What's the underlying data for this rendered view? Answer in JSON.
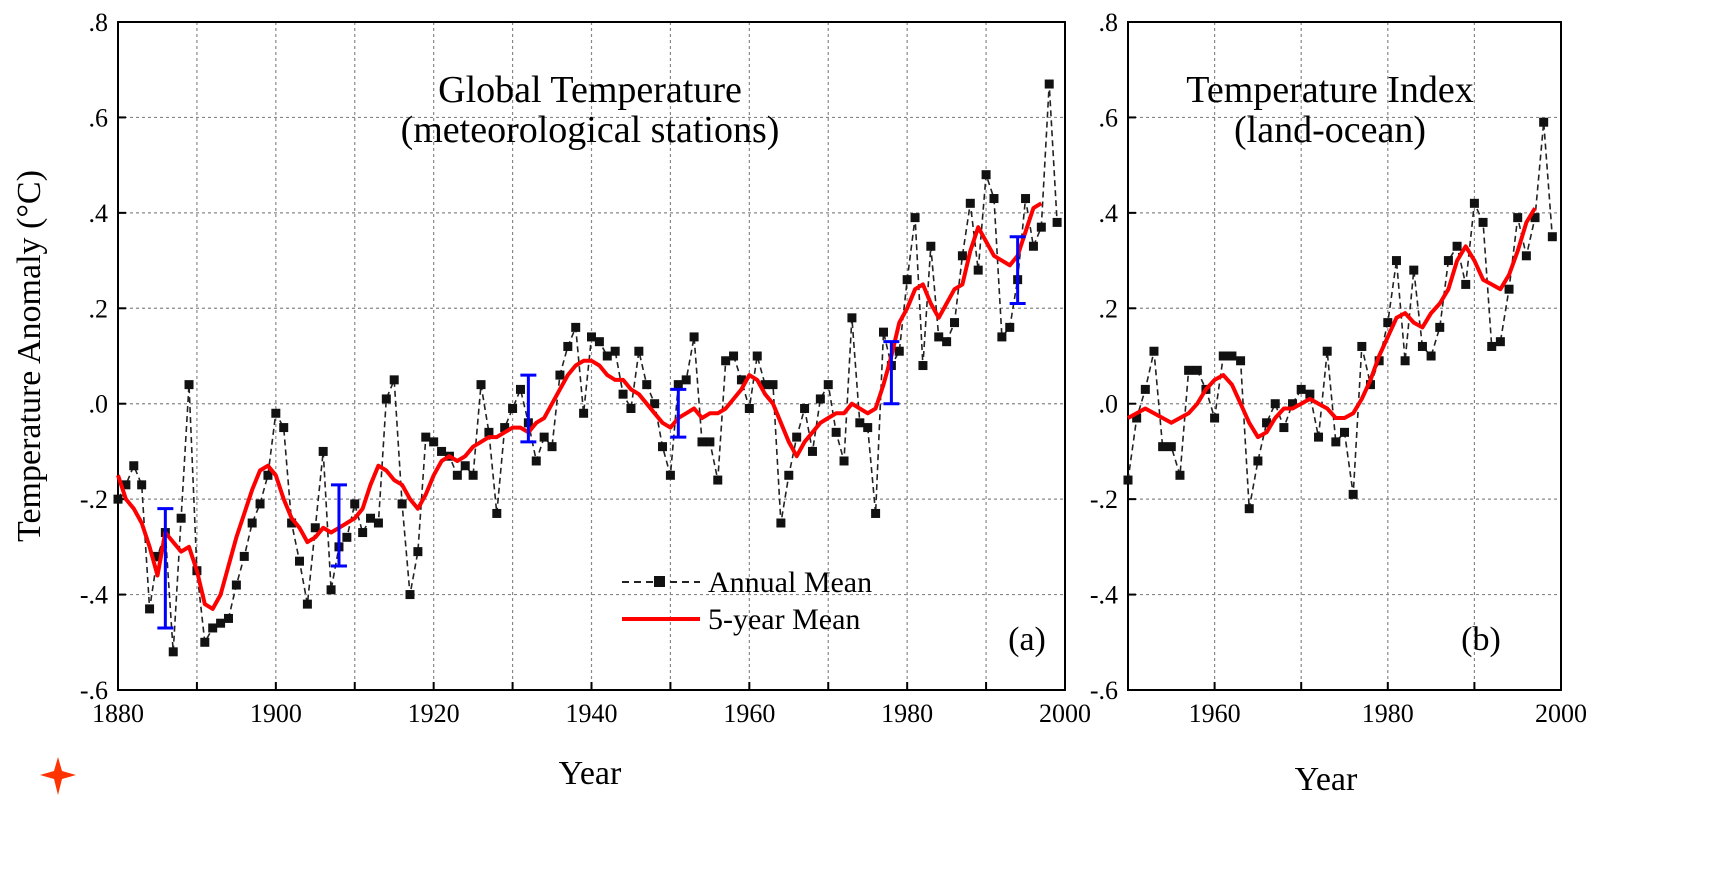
{
  "chart_data": [
    {
      "type": "line",
      "panel": "(a)",
      "title": "Global Temperature",
      "subtitle": "(meteorological stations)",
      "xlabel": "Year",
      "ylabel": "Temperature Anomaly (°C)",
      "xlim": [
        1880,
        2000
      ],
      "ylim": [
        -0.6,
        0.8
      ],
      "x_ticks": [
        "1880",
        "1900",
        "1920",
        "1940",
        "1960",
        "1980",
        "2000"
      ],
      "y_ticks": [
        ".8",
        ".6",
        ".4",
        ".2",
        ".0",
        "-.2",
        "-.4",
        "-.6"
      ],
      "grid": true,
      "legend_position": "bottom-center",
      "series": [
        {
          "name": "Annual Mean",
          "style": "dashed-markers",
          "color": "#222222",
          "x": [
            1880,
            1881,
            1882,
            1883,
            1884,
            1885,
            1886,
            1887,
            1888,
            1889,
            1890,
            1891,
            1892,
            1893,
            1894,
            1895,
            1896,
            1897,
            1898,
            1899,
            1900,
            1901,
            1902,
            1903,
            1904,
            1905,
            1906,
            1907,
            1908,
            1909,
            1910,
            1911,
            1912,
            1913,
            1914,
            1915,
            1916,
            1917,
            1918,
            1919,
            1920,
            1921,
            1922,
            1923,
            1924,
            1925,
            1926,
            1927,
            1928,
            1929,
            1930,
            1931,
            1932,
            1933,
            1934,
            1935,
            1936,
            1937,
            1938,
            1939,
            1940,
            1941,
            1942,
            1943,
            1944,
            1945,
            1946,
            1947,
            1948,
            1949,
            1950,
            1951,
            1952,
            1953,
            1954,
            1955,
            1956,
            1957,
            1958,
            1959,
            1960,
            1961,
            1962,
            1963,
            1964,
            1965,
            1966,
            1967,
            1968,
            1969,
            1970,
            1971,
            1972,
            1973,
            1974,
            1975,
            1976,
            1977,
            1978,
            1979,
            1980,
            1981,
            1982,
            1983,
            1984,
            1985,
            1986,
            1987,
            1988,
            1989,
            1990,
            1991,
            1992,
            1993,
            1994,
            1995,
            1996,
            1997,
            1998,
            1999
          ],
          "y": [
            -0.2,
            -0.17,
            -0.13,
            -0.17,
            -0.43,
            -0.32,
            -0.27,
            -0.52,
            -0.24,
            0.04,
            -0.35,
            -0.5,
            -0.47,
            -0.46,
            -0.45,
            -0.38,
            -0.32,
            -0.25,
            -0.21,
            -0.15,
            -0.02,
            -0.05,
            -0.25,
            -0.33,
            -0.42,
            -0.26,
            -0.1,
            -0.39,
            -0.3,
            -0.28,
            -0.21,
            -0.27,
            -0.24,
            -0.25,
            0.01,
            0.05,
            -0.21,
            -0.4,
            -0.31,
            -0.07,
            -0.08,
            -0.1,
            -0.11,
            -0.15,
            -0.13,
            -0.15,
            0.04,
            -0.06,
            -0.23,
            -0.05,
            -0.01,
            0.03,
            -0.04,
            -0.12,
            -0.07,
            -0.09,
            0.06,
            0.12,
            0.16,
            -0.02,
            0.14,
            0.13,
            0.1,
            0.11,
            0.02,
            -0.01,
            0.11,
            0.04,
            0.0,
            -0.09,
            -0.15,
            0.04,
            0.05,
            0.14,
            -0.08,
            -0.08,
            -0.16,
            0.09,
            0.1,
            0.05,
            -0.01,
            0.1,
            0.04,
            0.04,
            -0.25,
            -0.15,
            -0.07,
            -0.01,
            -0.1,
            0.01,
            0.04,
            -0.06,
            -0.12,
            0.18,
            -0.04,
            -0.05,
            -0.23,
            0.15,
            0.08,
            0.11,
            0.26,
            0.39,
            0.08,
            0.33,
            0.14,
            0.13,
            0.17,
            0.31,
            0.42,
            0.28,
            0.48,
            0.43,
            0.14,
            0.16,
            0.26,
            0.43,
            0.33,
            0.37,
            0.67,
            0.38
          ]
        },
        {
          "name": "5-year Mean",
          "style": "solid",
          "color": "#ff0000",
          "x": [
            1880,
            1881,
            1882,
            1883,
            1884,
            1885,
            1886,
            1887,
            1888,
            1889,
            1890,
            1891,
            1892,
            1893,
            1894,
            1895,
            1896,
            1897,
            1898,
            1899,
            1900,
            1901,
            1902,
            1903,
            1904,
            1905,
            1906,
            1907,
            1908,
            1909,
            1910,
            1911,
            1912,
            1913,
            1914,
            1915,
            1916,
            1917,
            1918,
            1919,
            1920,
            1921,
            1922,
            1923,
            1924,
            1925,
            1926,
            1927,
            1928,
            1929,
            1930,
            1931,
            1932,
            1933,
            1934,
            1935,
            1936,
            1937,
            1938,
            1939,
            1940,
            1941,
            1942,
            1943,
            1944,
            1945,
            1946,
            1947,
            1948,
            1949,
            1950,
            1951,
            1952,
            1953,
            1954,
            1955,
            1956,
            1957,
            1958,
            1959,
            1960,
            1961,
            1962,
            1963,
            1964,
            1965,
            1966,
            1967,
            1968,
            1969,
            1970,
            1971,
            1972,
            1973,
            1974,
            1975,
            1976,
            1977,
            1978,
            1979,
            1980,
            1981,
            1982,
            1983,
            1984,
            1985,
            1986,
            1987,
            1988,
            1989,
            1990,
            1991,
            1992,
            1993,
            1994,
            1995,
            1996,
            1997
          ],
          "y": [
            -0.15,
            -0.2,
            -0.22,
            -0.25,
            -0.3,
            -0.36,
            -0.27,
            -0.29,
            -0.31,
            -0.3,
            -0.35,
            -0.42,
            -0.43,
            -0.4,
            -0.34,
            -0.28,
            -0.23,
            -0.18,
            -0.14,
            -0.13,
            -0.15,
            -0.2,
            -0.24,
            -0.26,
            -0.29,
            -0.28,
            -0.26,
            -0.27,
            -0.26,
            -0.25,
            -0.24,
            -0.22,
            -0.17,
            -0.13,
            -0.14,
            -0.16,
            -0.17,
            -0.2,
            -0.22,
            -0.19,
            -0.15,
            -0.12,
            -0.11,
            -0.12,
            -0.11,
            -0.09,
            -0.08,
            -0.07,
            -0.07,
            -0.06,
            -0.05,
            -0.05,
            -0.06,
            -0.04,
            -0.03,
            0.0,
            0.03,
            0.06,
            0.08,
            0.09,
            0.09,
            0.08,
            0.06,
            0.05,
            0.05,
            0.03,
            0.02,
            0.0,
            -0.02,
            -0.04,
            -0.05,
            -0.03,
            -0.02,
            -0.01,
            -0.03,
            -0.02,
            -0.02,
            -0.01,
            0.01,
            0.03,
            0.06,
            0.05,
            0.02,
            0.0,
            -0.04,
            -0.08,
            -0.11,
            -0.08,
            -0.06,
            -0.04,
            -0.03,
            -0.02,
            -0.02,
            0.0,
            -0.01,
            -0.02,
            -0.01,
            0.04,
            0.1,
            0.17,
            0.2,
            0.24,
            0.25,
            0.21,
            0.18,
            0.21,
            0.24,
            0.25,
            0.32,
            0.37,
            0.34,
            0.31,
            0.3,
            0.29,
            0.31,
            0.36,
            0.41,
            0.42
          ]
        }
      ],
      "error_bars": [
        {
          "x": 1886,
          "low": -0.47,
          "high": -0.22
        },
        {
          "x": 1908,
          "low": -0.34,
          "high": -0.17
        },
        {
          "x": 1932,
          "low": -0.08,
          "high": 0.06
        },
        {
          "x": 1951,
          "low": -0.07,
          "high": 0.03
        },
        {
          "x": 1978,
          "low": 0.0,
          "high": 0.13
        },
        {
          "x": 1994,
          "low": 0.21,
          "high": 0.35
        }
      ],
      "error_bar_color": "#0000ff"
    },
    {
      "type": "line",
      "panel": "(b)",
      "title": "Temperature Index",
      "subtitle": "(land-ocean)",
      "xlabel": "Year",
      "ylabel": "",
      "xlim": [
        1950,
        2000
      ],
      "ylim": [
        -0.6,
        0.8
      ],
      "x_ticks": [
        "1960",
        "1980",
        "2000"
      ],
      "y_ticks": [
        ".8",
        ".6",
        ".4",
        ".2",
        ".0",
        "-.2",
        "-.4",
        "-.6"
      ],
      "grid": true,
      "series": [
        {
          "name": "Annual Mean",
          "style": "dashed-markers",
          "color": "#222222",
          "x": [
            1950,
            1951,
            1952,
            1953,
            1954,
            1955,
            1956,
            1957,
            1958,
            1959,
            1960,
            1961,
            1962,
            1963,
            1964,
            1965,
            1966,
            1967,
            1968,
            1969,
            1970,
            1971,
            1972,
            1973,
            1974,
            1975,
            1976,
            1977,
            1978,
            1979,
            1980,
            1981,
            1982,
            1983,
            1984,
            1985,
            1986,
            1987,
            1988,
            1989,
            1990,
            1991,
            1992,
            1993,
            1994,
            1995,
            1996,
            1997,
            1998,
            1999
          ],
          "y": [
            -0.16,
            -0.03,
            0.03,
            0.11,
            -0.09,
            -0.09,
            -0.15,
            0.07,
            0.07,
            0.03,
            -0.03,
            0.1,
            0.1,
            0.09,
            -0.22,
            -0.12,
            -0.04,
            0.0,
            -0.05,
            0.0,
            0.03,
            0.02,
            -0.07,
            0.11,
            -0.08,
            -0.06,
            -0.19,
            0.12,
            0.04,
            0.09,
            0.17,
            0.3,
            0.09,
            0.28,
            0.12,
            0.1,
            0.16,
            0.3,
            0.33,
            0.25,
            0.42,
            0.38,
            0.12,
            0.13,
            0.24,
            0.39,
            0.31,
            0.39,
            0.59,
            0.35
          ]
        },
        {
          "name": "5-year Mean",
          "style": "solid",
          "color": "#ff0000",
          "x": [
            1950,
            1951,
            1952,
            1953,
            1954,
            1955,
            1956,
            1957,
            1958,
            1959,
            1960,
            1961,
            1962,
            1963,
            1964,
            1965,
            1966,
            1967,
            1968,
            1969,
            1970,
            1971,
            1972,
            1973,
            1974,
            1975,
            1976,
            1977,
            1978,
            1979,
            1980,
            1981,
            1982,
            1983,
            1984,
            1985,
            1986,
            1987,
            1988,
            1989,
            1990,
            1991,
            1992,
            1993,
            1994,
            1995,
            1996,
            1997
          ],
          "y": [
            -0.03,
            -0.02,
            -0.01,
            -0.02,
            -0.03,
            -0.04,
            -0.03,
            -0.02,
            0.0,
            0.03,
            0.05,
            0.06,
            0.04,
            0.0,
            -0.04,
            -0.07,
            -0.06,
            -0.03,
            -0.01,
            -0.01,
            0.0,
            0.01,
            0.0,
            -0.01,
            -0.03,
            -0.03,
            -0.02,
            0.01,
            0.05,
            0.1,
            0.14,
            0.18,
            0.19,
            0.17,
            0.16,
            0.19,
            0.21,
            0.24,
            0.3,
            0.33,
            0.3,
            0.26,
            0.25,
            0.24,
            0.27,
            0.32,
            0.38,
            0.41
          ]
        }
      ]
    }
  ],
  "legend": {
    "annual": "Annual Mean",
    "five_year": "5-year Mean"
  },
  "colors": {
    "annual": "#222222",
    "five_year": "#ff0000",
    "error_bars": "#0000ff",
    "grid": "#888888",
    "logo": "#ff3300"
  },
  "logo_icon": "cross-logo-icon"
}
